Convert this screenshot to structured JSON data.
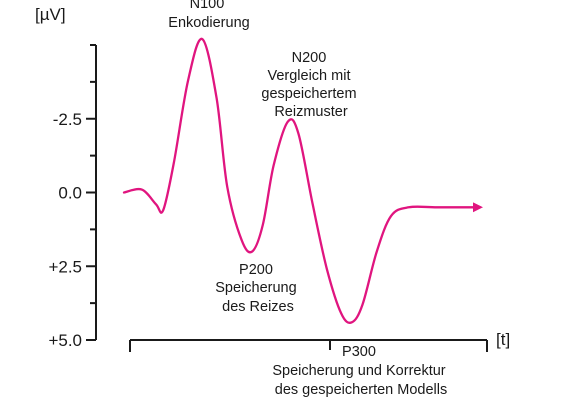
{
  "chart_data": {
    "type": "line",
    "y_unit": "[µV]",
    "x_unit": "[t]",
    "y_inverted": true,
    "y_ticks": [
      {
        "value": -2.5,
        "label": "-2.5"
      },
      {
        "value": 0.0,
        "label": "0.0"
      },
      {
        "value": 2.5,
        "label": "+2.5"
      },
      {
        "value": 5.0,
        "label": "+5.0"
      }
    ],
    "ylim": [
      -5.0,
      5.0
    ],
    "xlim": [
      0,
      100
    ],
    "series": [
      {
        "color": "#e0157f",
        "points": [
          [
            0,
            0.0
          ],
          [
            5,
            -0.1
          ],
          [
            9,
            0.4
          ],
          [
            11,
            0.6
          ],
          [
            14,
            -1.0
          ],
          [
            18,
            -3.8
          ],
          [
            22,
            -5.2
          ],
          [
            26,
            -3.2
          ],
          [
            29,
            -0.2
          ],
          [
            33,
            1.6
          ],
          [
            36,
            2.0
          ],
          [
            39,
            1.1
          ],
          [
            42,
            -0.9
          ],
          [
            46,
            -2.4
          ],
          [
            49,
            -2.0
          ],
          [
            53,
            0.4
          ],
          [
            57,
            2.6
          ],
          [
            61,
            4.1
          ],
          [
            64,
            4.4
          ],
          [
            67,
            3.8
          ],
          [
            71,
            2.0
          ],
          [
            75,
            0.8
          ],
          [
            80,
            0.5
          ],
          [
            88,
            0.5
          ],
          [
            100,
            0.5
          ]
        ]
      }
    ],
    "annotations": [
      {
        "id": "n100",
        "lines": [
          "N100",
          "Enkodierung"
        ]
      },
      {
        "id": "n200",
        "lines": [
          "N200",
          "Vergleich mit",
          "gespeichertem",
          "Reizmuster"
        ]
      },
      {
        "id": "p200",
        "lines": [
          "P200",
          "Speicherung",
          "des Reizes"
        ]
      },
      {
        "id": "p300",
        "lines": [
          "P300",
          "Speicherung und Korrektur",
          "des gespeicherten Modells"
        ]
      }
    ]
  }
}
